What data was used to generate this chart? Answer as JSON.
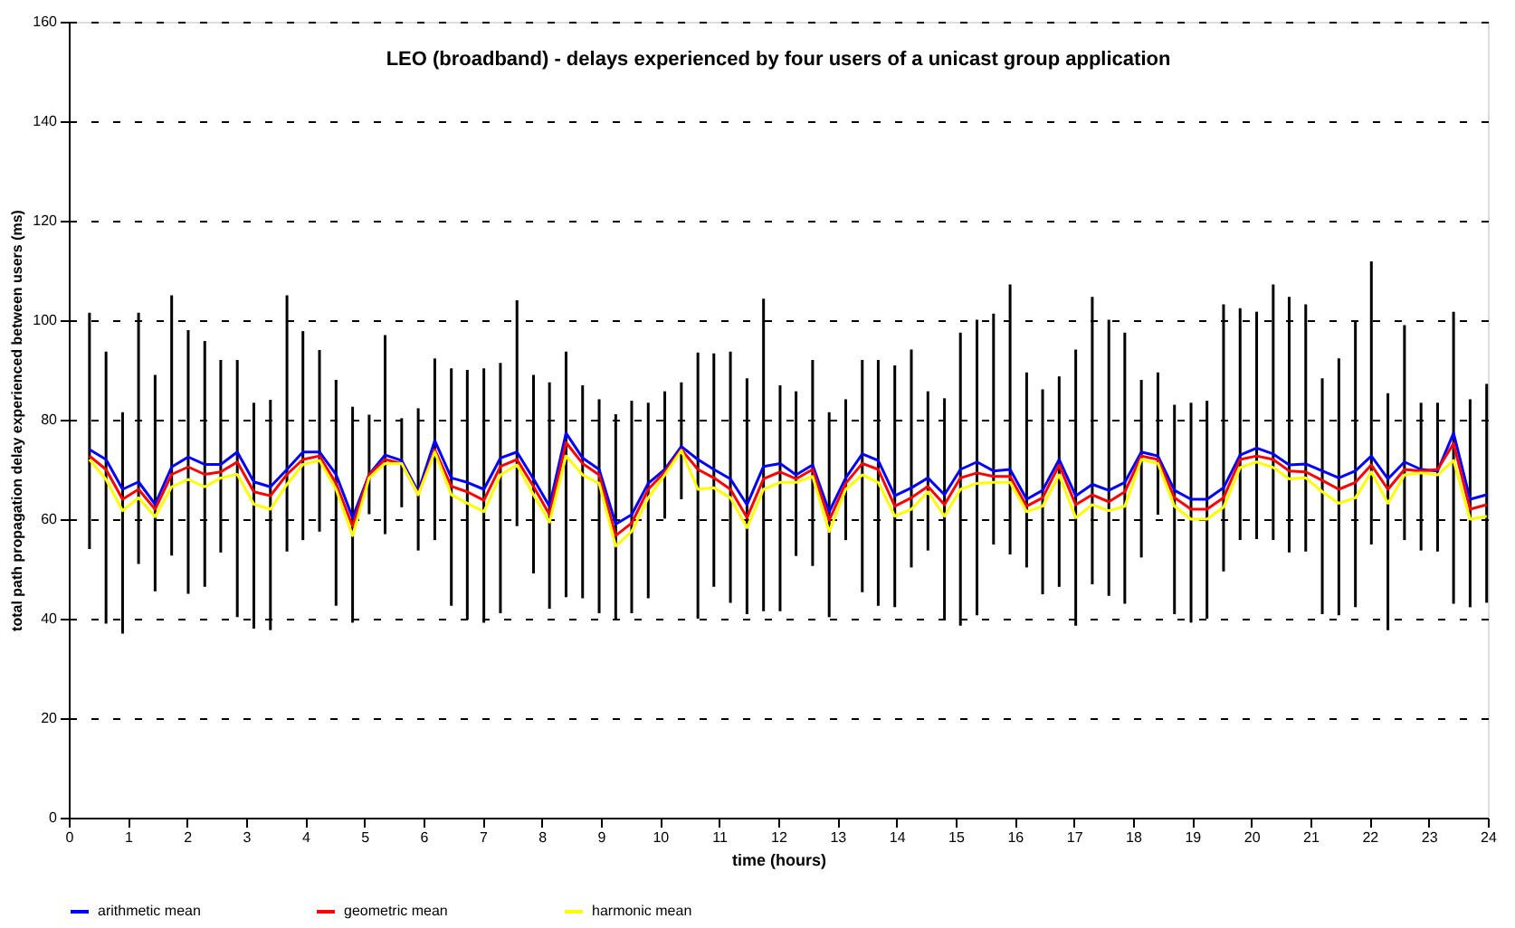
{
  "chart_data": {
    "type": "line",
    "title": "LEO (broadband) - delays experienced by four users of a unicast group application",
    "xlabel": "time (hours)",
    "ylabel": "total path propagation delay experienced between users (ms)",
    "x": [
      0.35,
      0.63,
      0.91,
      1.18,
      1.46,
      1.74,
      2.02,
      2.3,
      2.57,
      2.85,
      3.13,
      3.41,
      3.69,
      3.96,
      4.24,
      4.52,
      4.8,
      5.08,
      5.35,
      5.63,
      5.91,
      6.19,
      6.47,
      6.74,
      7.02,
      7.3,
      7.58,
      7.86,
      8.13,
      8.41,
      8.69,
      8.97,
      9.25,
      9.52,
      9.8,
      10.08,
      10.36,
      10.64,
      10.91,
      11.19,
      11.47,
      11.75,
      12.03,
      12.3,
      12.58,
      12.86,
      13.14,
      13.42,
      13.69,
      13.97,
      14.25,
      14.53,
      14.81,
      15.08,
      15.36,
      15.64,
      15.92,
      16.2,
      16.47,
      16.75,
      17.03,
      17.31,
      17.59,
      17.86,
      18.14,
      18.42,
      18.7,
      18.98,
      19.25,
      19.53,
      19.81,
      20.09,
      20.37,
      20.64,
      20.92,
      21.2,
      21.48,
      21.76,
      22.03,
      22.31,
      22.59,
      22.87,
      23.15,
      23.42,
      23.7,
      23.98
    ],
    "series": [
      {
        "name": "arithmetic mean",
        "color": "#0000ff",
        "values": [
          74,
          72,
          66,
          67.5,
          63,
          70.5,
          72.5,
          71,
          71,
          73.5,
          67.5,
          66.5,
          70,
          73.5,
          73.5,
          69,
          60.3,
          69,
          72.9,
          71.8,
          65.5,
          75.8,
          68.3,
          67.4,
          66,
          72.3,
          73.5,
          68.1,
          62.6,
          77.3,
          72.3,
          70,
          59,
          60.9,
          67.2,
          70,
          74.6,
          72,
          70,
          68.1,
          62.9,
          70.6,
          71.2,
          68.9,
          70.9,
          61.5,
          68.3,
          73.1,
          71.8,
          64.7,
          66.3,
          68.3,
          64.9,
          70,
          71.5,
          69.7,
          70,
          64,
          65.8,
          72,
          64.7,
          67,
          65.8,
          67.4,
          73.5,
          72.7,
          65.8,
          64,
          64,
          66.3,
          72.9,
          74.3,
          73.1,
          70.9,
          71.1,
          69.7,
          68.3,
          69.7,
          72.7,
          68.1,
          71.5,
          70,
          69.7,
          77.3,
          64,
          64.9
        ],
        "errors": [
          [
            54,
            101.5
          ],
          [
            39,
            93.7
          ],
          [
            37,
            81.5
          ],
          [
            51,
            101.5
          ],
          [
            45.5,
            89
          ],
          [
            52.7,
            105
          ],
          [
            45,
            98
          ],
          [
            46.4,
            95.8
          ],
          [
            53.3,
            92
          ],
          [
            40.3,
            92
          ],
          [
            38,
            83.4
          ],
          [
            37.7,
            84
          ],
          [
            53.5,
            105
          ],
          [
            55.8,
            97.8
          ],
          [
            57.5,
            94
          ],
          [
            42.6,
            88
          ],
          [
            39.2,
            82.6
          ],
          [
            61,
            81
          ],
          [
            57,
            97
          ],
          [
            62.4,
            80.3
          ],
          [
            53.7,
            82.3
          ],
          [
            55.8,
            92.3
          ],
          [
            42.6,
            90.3
          ],
          [
            39.8,
            90
          ],
          [
            39.2,
            90.3
          ],
          [
            41.1,
            91.4
          ],
          [
            58.6,
            104
          ],
          [
            49.1,
            89
          ],
          [
            42,
            87.5
          ],
          [
            44.3,
            93.7
          ],
          [
            44.1,
            86.9
          ],
          [
            41.1,
            84.1
          ],
          [
            39.8,
            81.1
          ],
          [
            41.1,
            83.8
          ],
          [
            44.1,
            83.4
          ],
          [
            60.1,
            85.7
          ],
          [
            64,
            87.5
          ],
          [
            40,
            93.5
          ],
          [
            46.4,
            93.3
          ],
          [
            43.2,
            93.7
          ],
          [
            40.9,
            88.3
          ],
          [
            41.5,
            104.3
          ],
          [
            41.5,
            86.9
          ],
          [
            52.6,
            85.7
          ],
          [
            50.6,
            92
          ],
          [
            40.3,
            81.5
          ],
          [
            55.8,
            84.1
          ],
          [
            45.3,
            92
          ],
          [
            42.6,
            92
          ],
          [
            42.3,
            90.9
          ],
          [
            50.3,
            94.1
          ],
          [
            53.7,
            85.7
          ],
          [
            39.8,
            84.3
          ],
          [
            38.6,
            97.5
          ],
          [
            40.7,
            100.1
          ],
          [
            54.9,
            101.3
          ],
          [
            52.9,
            107.2
          ],
          [
            50.3,
            89.5
          ],
          [
            44.9,
            86.1
          ],
          [
            46.4,
            88.7
          ],
          [
            38.6,
            94.1
          ],
          [
            46.9,
            104.7
          ],
          [
            44.6,
            100.1
          ],
          [
            43,
            97.5
          ],
          [
            52.3,
            88
          ],
          [
            60.9,
            89.5
          ],
          [
            40.9,
            83
          ],
          [
            39.2,
            83.4
          ],
          [
            40,
            83.8
          ],
          [
            49.5,
            103.2
          ],
          [
            55.8,
            102.4
          ],
          [
            56,
            101.7
          ],
          [
            55.8,
            107.2
          ],
          [
            53.3,
            104.7
          ],
          [
            53.5,
            103.2
          ],
          [
            40.9,
            88.3
          ],
          [
            40.7,
            92.3
          ],
          [
            42.3,
            99.8
          ],
          [
            54.9,
            111.8
          ],
          [
            37.7,
            85.3
          ],
          [
            55.8,
            99
          ],
          [
            53.7,
            83.4
          ],
          [
            53.5,
            83.4
          ],
          [
            43,
            101.7
          ],
          [
            42.3,
            84.1
          ],
          [
            43.2,
            87.2
          ]
        ]
      },
      {
        "name": "geometric mean",
        "color": "#ff0000",
        "values": [
          72.7,
          70,
          64,
          66,
          62,
          69,
          70.5,
          69,
          69.5,
          71.5,
          65.5,
          64.7,
          69,
          72,
          72.7,
          67.2,
          58.6,
          69,
          72,
          71.2,
          65,
          74,
          66.6,
          65.5,
          63.8,
          70.6,
          72,
          66.6,
          60.9,
          75.4,
          71.2,
          68.9,
          56.7,
          59.2,
          66,
          69.5,
          74,
          70,
          68.3,
          66,
          60.3,
          68.1,
          69.5,
          68.1,
          70,
          59.8,
          67.2,
          71.2,
          70,
          62.6,
          64.3,
          66.6,
          62.9,
          68.3,
          69.3,
          68.6,
          68.6,
          62.6,
          64.3,
          70.9,
          62.9,
          64.9,
          63.5,
          65.5,
          72.7,
          72,
          64.3,
          62,
          62,
          64.3,
          72,
          72.7,
          72,
          69.7,
          69.5,
          67.8,
          66,
          67.4,
          70.9,
          66,
          70,
          69.7,
          70,
          75.2,
          62,
          62.9
        ]
      },
      {
        "name": "harmonic mean",
        "color": "#ffff00",
        "values": [
          72,
          68,
          61.7,
          64.3,
          60.5,
          66.5,
          68,
          66.5,
          68.3,
          69,
          63,
          62,
          67,
          71,
          71.8,
          66,
          56.7,
          68.3,
          71.2,
          71.2,
          64.9,
          73.5,
          64.9,
          63.2,
          61.5,
          68.9,
          70.9,
          64.9,
          59.4,
          72.7,
          68.9,
          67.2,
          54.6,
          57.5,
          64.3,
          68.9,
          73.8,
          66,
          66.3,
          64.3,
          58.3,
          66,
          67.4,
          67.4,
          68.6,
          57.5,
          66,
          68.9,
          67.4,
          60.6,
          62,
          65.5,
          60.6,
          66,
          67.2,
          67.4,
          67.4,
          61.5,
          62.6,
          68.9,
          60.3,
          62.9,
          61.7,
          62.6,
          72,
          71.2,
          62.6,
          60,
          60,
          62.4,
          70.4,
          71.5,
          70.4,
          68.1,
          68.3,
          65.5,
          63.2,
          64.3,
          69.5,
          63.2,
          68.9,
          69.3,
          68.9,
          71.8,
          60,
          60.6
        ]
      }
    ],
    "xlim": [
      0,
      24
    ],
    "xticks": [
      0,
      1,
      2,
      3,
      4,
      5,
      6,
      7,
      8,
      9,
      10,
      11,
      12,
      13,
      14,
      15,
      16,
      17,
      18,
      19,
      20,
      21,
      22,
      23,
      24
    ],
    "ylim": [
      0,
      160
    ],
    "yticks": [
      0,
      20,
      40,
      60,
      80,
      100,
      120,
      140,
      160
    ],
    "grid": "y",
    "line_style": "solid",
    "marker": "none",
    "legend": "bottom"
  }
}
